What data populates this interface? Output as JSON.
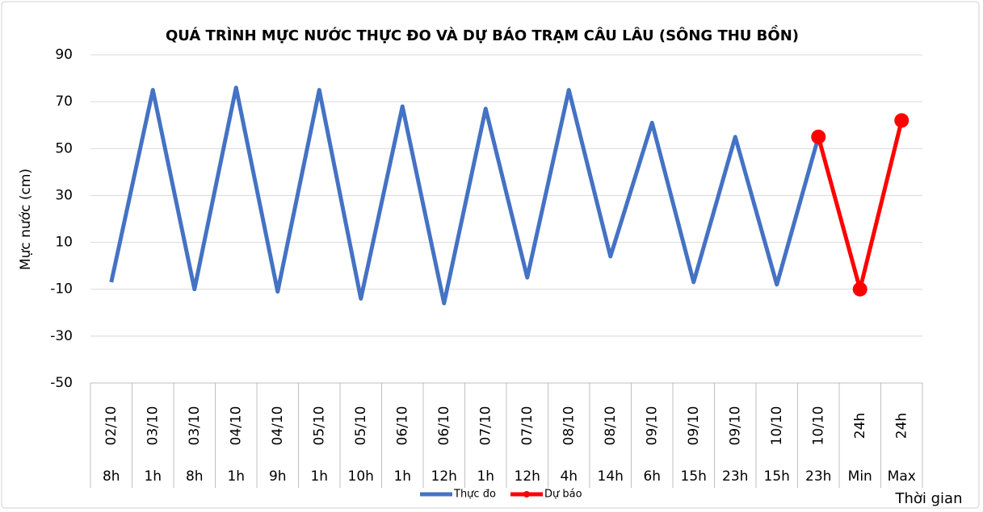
{
  "chart_data": {
    "type": "line",
    "title": "QUÁ TRÌNH MỰC NƯỚC THỰC ĐO VÀ DỰ BÁO TRẠM CÂU LÂU (SÔNG THU BỒN)",
    "y_label": "Mực nước (cm)",
    "x_label": "Thời gian",
    "categories": [
      [
        "02/10",
        "8h"
      ],
      [
        "03/10",
        "1h"
      ],
      [
        "03/10",
        "8h"
      ],
      [
        "04/10",
        "1h"
      ],
      [
        "04/10",
        "9h"
      ],
      [
        "05/10",
        "1h"
      ],
      [
        "05/10",
        "10h"
      ],
      [
        "06/10",
        "1h"
      ],
      [
        "06/10",
        "12h"
      ],
      [
        "07/10",
        "1h"
      ],
      [
        "07/10",
        "12h"
      ],
      [
        "08/10",
        "4h"
      ],
      [
        "08/10",
        "14h"
      ],
      [
        "09/10",
        "6h"
      ],
      [
        "09/10",
        "15h"
      ],
      [
        "09/10",
        "23h"
      ],
      [
        "10/10",
        "15h"
      ],
      [
        "10/10",
        "23h"
      ],
      [
        "24h",
        "Min"
      ],
      [
        "24h",
        "Max"
      ]
    ],
    "series": [
      {
        "name": "Thực đo",
        "color": "#4472c4",
        "marker": false,
        "values": [
          -7,
          75,
          -10,
          76,
          -11,
          75,
          -14,
          68,
          -16,
          67,
          -5,
          75,
          4,
          61,
          -7,
          55,
          -8,
          55,
          null,
          null
        ]
      },
      {
        "name": "Dự báo",
        "color": "#ff0000",
        "marker": true,
        "values": [
          null,
          null,
          null,
          null,
          null,
          null,
          null,
          null,
          null,
          null,
          null,
          null,
          null,
          null,
          null,
          null,
          null,
          55,
          -10,
          62
        ]
      }
    ],
    "ylim": [
      -50,
      90
    ],
    "yticks": [
      -50,
      -30,
      -10,
      10,
      30,
      50,
      70,
      90
    ],
    "grid": true,
    "legend": "bottom"
  }
}
